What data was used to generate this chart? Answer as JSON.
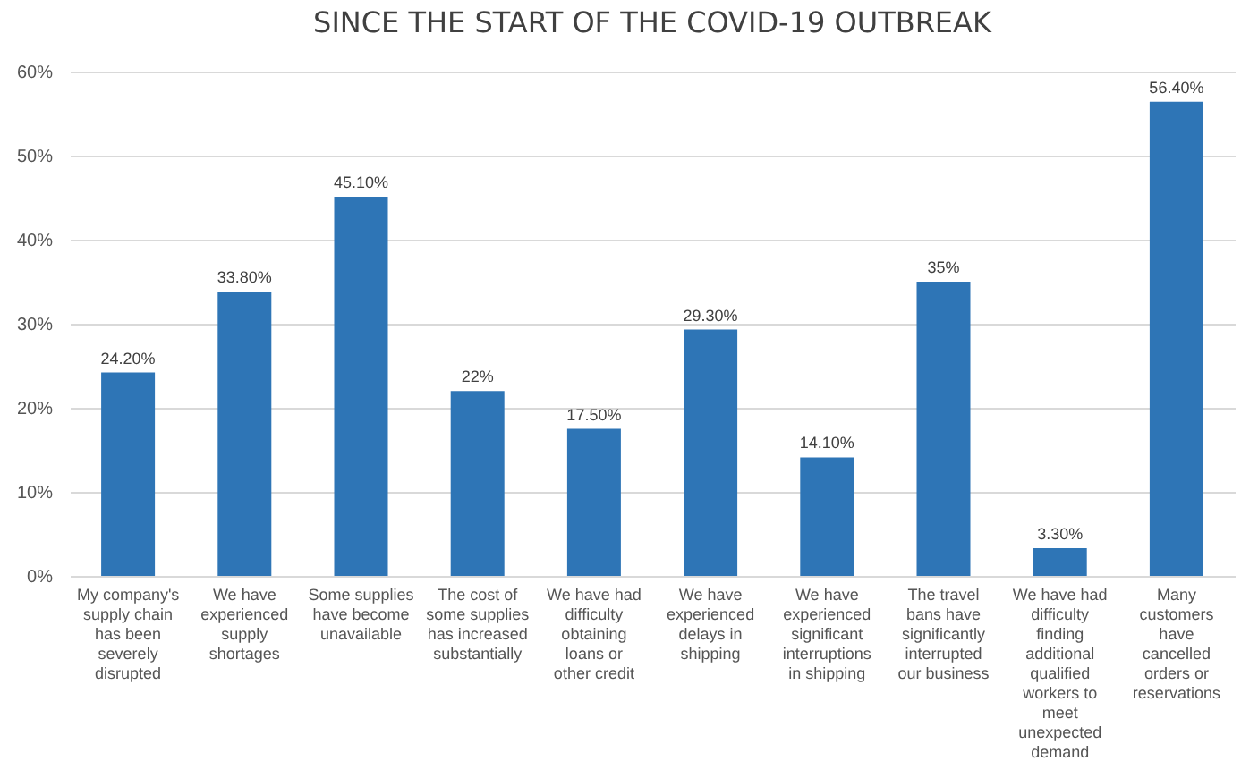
{
  "chart_data": {
    "type": "bar",
    "title": "SINCE THE START OF THE COVID-19 OUTBREAK",
    "categories": [
      "My company's supply chain has been severely disrupted",
      "We have experienced supply shortages",
      "Some supplies have become unavailable",
      "The cost of some supplies has increased substantially",
      "We have had difficulty obtaining loans or other credit",
      "We have experienced delays in shipping",
      "We have experienced significant interruptions in shipping",
      "The travel bans have significantly interrupted our business",
      "We have had difficulty finding additional qualified workers to meet unexpected demand",
      "Many customers have cancelled orders or reservations"
    ],
    "values": [
      24.2,
      33.8,
      45.1,
      22,
      17.5,
      29.3,
      14.1,
      35,
      3.3,
      56.4
    ],
    "value_labels": [
      "24.20%",
      "33.80%",
      "45.10%",
      "22%",
      "17.50%",
      "29.30%",
      "14.10%",
      "35%",
      "3.30%",
      "56.40%"
    ],
    "color": "#2e75b6",
    "ylim": [
      0,
      60
    ],
    "yticks": [
      {
        "value": 0,
        "label": "0%"
      },
      {
        "value": 10,
        "label": "10%"
      },
      {
        "value": 20,
        "label": "20%"
      },
      {
        "value": 30,
        "label": "30%"
      },
      {
        "value": 40,
        "label": "40%"
      },
      {
        "value": 50,
        "label": "50%"
      },
      {
        "value": 60,
        "label": "60%"
      }
    ],
    "grid": "y"
  }
}
